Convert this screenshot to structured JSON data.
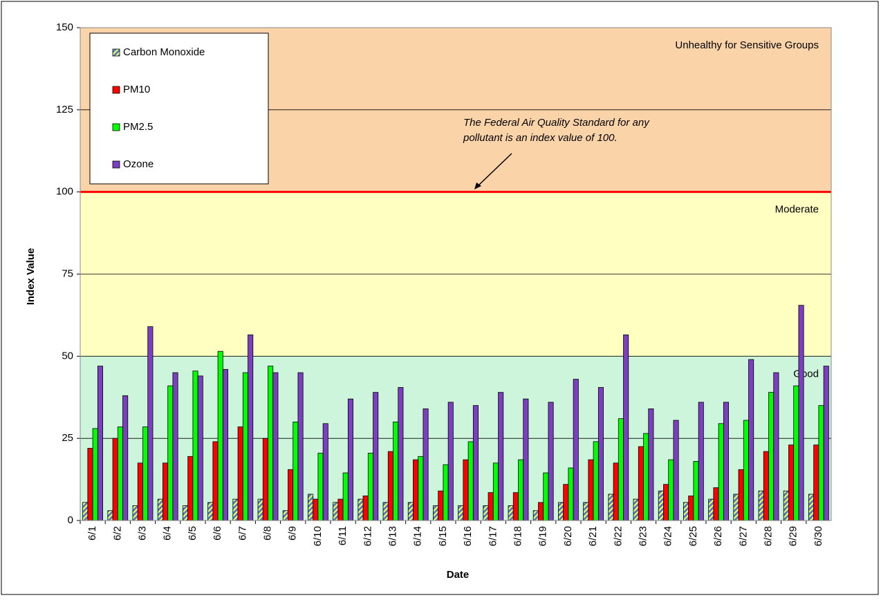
{
  "chart_data": {
    "type": "bar",
    "x_label": "Date",
    "y_label": "Index Value",
    "categories": [
      "6/1",
      "6/2",
      "6/3",
      "6/4",
      "6/5",
      "6/6",
      "6/7",
      "6/8",
      "6/9",
      "6/10",
      "6/11",
      "6/12",
      "6/13",
      "6/14",
      "6/15",
      "6/16",
      "6/17",
      "6/18",
      "6/19",
      "6/20",
      "6/21",
      "6/22",
      "6/23",
      "6/24",
      "6/25",
      "6/26",
      "6/27",
      "6/28",
      "6/29",
      "6/30"
    ],
    "series": [
      {
        "name": "Carbon Monoxide",
        "color": "#4f81bd",
        "hatch": "#ffff66",
        "values": [
          5.5,
          3,
          4.5,
          6.5,
          4.5,
          5.5,
          6.5,
          6.5,
          3,
          8,
          5.5,
          6.5,
          5.5,
          5.5,
          4.5,
          4.5,
          4.5,
          4.5,
          3,
          5.5,
          5.5,
          8,
          6.5,
          9,
          5.5,
          6.5,
          8,
          9,
          9,
          8
        ]
      },
      {
        "name": "PM10",
        "color": "#ff0000",
        "values": [
          22,
          25,
          17.5,
          17.5,
          19.5,
          24,
          28.5,
          25,
          15.5,
          6.5,
          6.5,
          7.5,
          21,
          18.5,
          9,
          18.5,
          8.5,
          8.5,
          5.5,
          11,
          18.5,
          17.5,
          22.5,
          11,
          7.5,
          10,
          15.5,
          21,
          23,
          23
        ]
      },
      {
        "name": "PM2.5",
        "color": "#00ff00",
        "values": [
          28,
          28.5,
          28.5,
          41,
          45.5,
          51.5,
          45,
          47,
          30,
          20.5,
          14.5,
          20.5,
          30,
          19.5,
          17,
          24,
          17.5,
          18.5,
          14.5,
          16,
          24,
          31,
          26.5,
          18.5,
          18,
          29.5,
          30.5,
          39,
          41,
          35
        ]
      },
      {
        "name": "Ozone",
        "color": "#7b3fbf",
        "values": [
          47,
          38,
          59,
          45,
          44,
          46,
          56.5,
          45,
          45,
          29.5,
          37,
          39,
          40.5,
          34,
          36,
          35,
          39,
          37,
          36,
          43,
          40.5,
          56.5,
          34,
          30.5,
          36,
          36,
          49,
          45,
          65.5,
          47
        ]
      }
    ],
    "ylim": [
      0,
      150
    ],
    "yticks": [
      0,
      25,
      50,
      75,
      100,
      125,
      150
    ],
    "grid": true,
    "legend": "top-left",
    "bands": [
      {
        "label": "Good",
        "from": 0,
        "to": 50,
        "color": "#ccf5dc",
        "text_color": "#22a844"
      },
      {
        "label": "Moderate",
        "from": 50,
        "to": 100,
        "color": "#ffffc2",
        "text_color": "#ffa020"
      },
      {
        "label": "Unhealthy for Sensitive Groups",
        "from": 100,
        "to": 150,
        "color": "#fbd3a8",
        "text_color": "#ff1010"
      }
    ],
    "reference_line": {
      "value": 100,
      "color": "#ff0000"
    },
    "annotation": [
      "The Federal Air Quality Standard for any",
      "pollutant is an index value of 100."
    ]
  }
}
